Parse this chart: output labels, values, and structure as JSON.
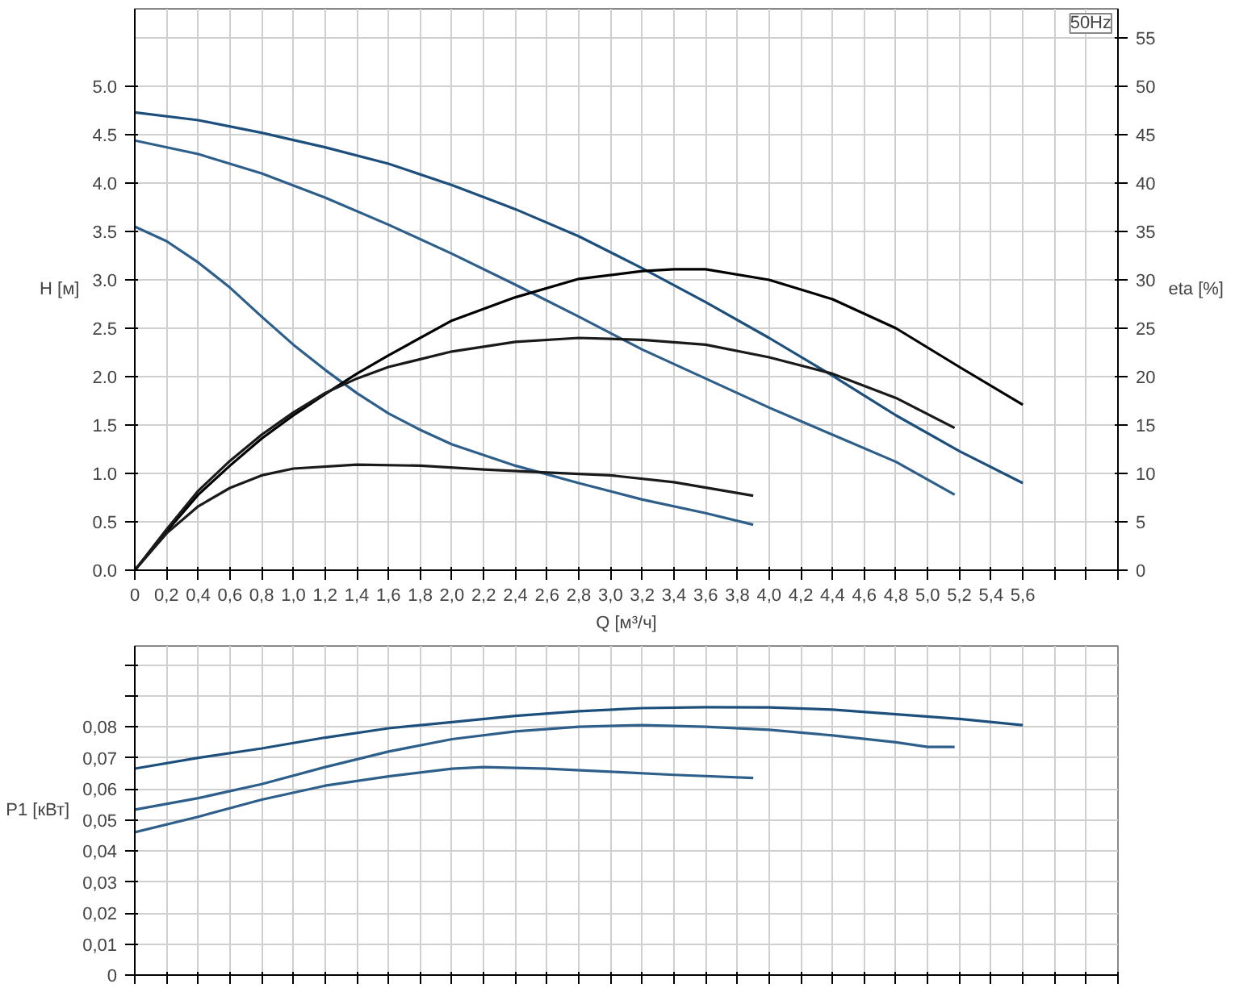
{
  "chart_data": [
    {
      "type": "line",
      "xlabel": "Q [м³/ч]",
      "ylabel": "H [м]",
      "y2label": "eta [%]",
      "annotations": [
        "50Hz"
      ],
      "xlim": [
        0,
        6.2
      ],
      "ylim": [
        0,
        5.8
      ],
      "y2lim": [
        0,
        58
      ],
      "xticks": [
        0,
        {
          "value": 0.2,
          "label": "0,2"
        },
        {
          "value": 0.4,
          "label": "0,4"
        },
        {
          "value": 0.6,
          "label": "0,6"
        },
        {
          "value": 0.8,
          "label": "0,8"
        },
        {
          "value": 1.0,
          "label": "1,0"
        },
        {
          "value": 1.2,
          "label": "1,2"
        },
        {
          "value": 1.4,
          "label": "1,4"
        },
        {
          "value": 1.6,
          "label": "1,6"
        },
        {
          "value": 1.8,
          "label": "1,8"
        },
        {
          "value": 2.0,
          "label": "2,0"
        },
        {
          "value": 2.2,
          "label": "2,2"
        },
        {
          "value": 2.4,
          "label": "2,4"
        },
        {
          "value": 2.6,
          "label": "2,6"
        },
        {
          "value": 2.8,
          "label": "2,8"
        },
        {
          "value": 3.0,
          "label": "3,0"
        },
        {
          "value": 3.2,
          "label": "3,2"
        },
        {
          "value": 3.4,
          "label": "3,4"
        },
        {
          "value": 3.6,
          "label": "3,6"
        },
        {
          "value": 3.8,
          "label": "3,8"
        },
        {
          "value": 4.0,
          "label": "4,0"
        },
        {
          "value": 4.2,
          "label": "4,2"
        },
        {
          "value": 4.4,
          "label": "4,4"
        },
        {
          "value": 4.6,
          "label": "4,6"
        },
        {
          "value": 4.8,
          "label": "4,8"
        },
        {
          "value": 5.0,
          "label": "5,0"
        },
        {
          "value": 5.2,
          "label": "5,2"
        },
        {
          "value": 5.4,
          "label": "5,4"
        },
        {
          "value": 5.6,
          "label": "5,6"
        },
        {
          "value": 5.8,
          "label": null
        },
        {
          "value": 6.0,
          "label": null
        },
        {
          "value": 6.2,
          "label": null
        }
      ],
      "yticks": [
        {
          "value": 0,
          "label": "0.0"
        },
        {
          "value": 0.5,
          "label": "0.5"
        },
        {
          "value": 1,
          "label": "1.0"
        },
        {
          "value": 1.5,
          "label": "1.5"
        },
        {
          "value": 2,
          "label": "2.0"
        },
        {
          "value": 2.5,
          "label": "2.5"
        },
        {
          "value": 3,
          "label": "3.0"
        },
        {
          "value": 3.5,
          "label": "3.5"
        },
        {
          "value": 4,
          "label": "4.0"
        },
        {
          "value": 4.5,
          "label": "4.5"
        },
        {
          "value": 5,
          "label": "5.0"
        }
      ],
      "y2ticks": [
        0,
        5,
        10,
        15,
        20,
        25,
        30,
        35,
        40,
        45,
        50,
        55
      ],
      "grid": true,
      "series": [
        {
          "color": "#1c4f7c",
          "x": [
            0,
            0.4,
            0.8,
            1.2,
            1.6,
            2.0,
            2.4,
            2.8,
            3.2,
            3.6,
            4.0,
            4.4,
            4.8,
            5.2,
            5.6
          ],
          "values": [
            4.73,
            4.65,
            4.52,
            4.37,
            4.2,
            3.98,
            3.73,
            3.45,
            3.12,
            2.77,
            2.4,
            2.01,
            1.6,
            1.23,
            0.9
          ]
        },
        {
          "color": "#2e5f8a",
          "x": [
            0,
            0.4,
            0.8,
            1.2,
            1.6,
            2.0,
            2.4,
            2.8,
            3.2,
            3.6,
            4.0,
            4.4,
            4.8,
            5.17
          ],
          "values": [
            4.44,
            4.3,
            4.1,
            3.85,
            3.57,
            3.27,
            2.95,
            2.62,
            2.28,
            1.98,
            1.68,
            1.4,
            1.12,
            0.78
          ]
        },
        {
          "color": "#2e5f8a",
          "x": [
            0,
            0.2,
            0.4,
            0.6,
            0.8,
            1.0,
            1.2,
            1.4,
            1.6,
            1.8,
            2.0,
            2.4,
            2.8,
            3.2,
            3.6,
            3.9
          ],
          "values": [
            3.55,
            3.4,
            3.18,
            2.92,
            2.62,
            2.33,
            2.07,
            1.83,
            1.62,
            1.45,
            1.3,
            1.08,
            0.9,
            0.73,
            0.59,
            0.47
          ]
        },
        {
          "color": "#000000",
          "axis": "y2",
          "x": [
            0,
            0.2,
            0.4,
            0.6,
            0.8,
            1.0,
            1.2,
            1.4,
            1.6,
            2.0,
            2.4,
            2.8,
            3.2,
            3.4,
            3.6,
            4.0,
            4.4,
            4.8,
            5.2,
            5.6
          ],
          "values": [
            0,
            4,
            7.8,
            10.8,
            13.6,
            16,
            18.2,
            20.3,
            22.2,
            25.8,
            28.2,
            30.1,
            30.9,
            31.1,
            31.1,
            30,
            28,
            25,
            21,
            17.1
          ]
        },
        {
          "color": "#1a1a1a",
          "axis": "y2",
          "x": [
            0,
            0.2,
            0.4,
            0.6,
            0.8,
            1.0,
            1.2,
            1.4,
            1.6,
            2.0,
            2.4,
            2.8,
            3.2,
            3.6,
            4.0,
            4.4,
            4.8,
            5.17
          ],
          "values": [
            0,
            4.2,
            8.2,
            11.3,
            14,
            16.3,
            18.3,
            19.8,
            21,
            22.6,
            23.6,
            24,
            23.8,
            23.3,
            22,
            20.3,
            17.8,
            14.7
          ]
        },
        {
          "color": "#1a1a1a",
          "axis": "y2",
          "x": [
            0,
            0.2,
            0.4,
            0.6,
            0.8,
            1.0,
            1.4,
            1.8,
            2.2,
            2.6,
            3.0,
            3.4,
            3.9
          ],
          "values": [
            0,
            3.8,
            6.6,
            8.5,
            9.8,
            10.5,
            10.9,
            10.8,
            10.4,
            10.1,
            9.8,
            9.1,
            7.7
          ]
        }
      ]
    },
    {
      "type": "line",
      "ylabel": "P1 [кВт]",
      "xlim": [
        0,
        6.2
      ],
      "ylim": [
        0,
        0.106
      ],
      "tick_labels": "y",
      "grid": true,
      "xticks": [
        0,
        0.2,
        0.4,
        0.6,
        0.8,
        1.0,
        1.2,
        1.4,
        1.6,
        1.8,
        2.0,
        2.2,
        2.4,
        2.6,
        2.8,
        3.0,
        3.2,
        3.4,
        3.6,
        3.8,
        4.0,
        4.2,
        4.4,
        4.6,
        4.8,
        5.0,
        5.2,
        5.4,
        5.6,
        5.8,
        6.0,
        6.2
      ],
      "yticks": [
        0,
        {
          "value": 0.01,
          "label": "0,01"
        },
        {
          "value": 0.02,
          "label": "0,02"
        },
        {
          "value": 0.03,
          "label": "0,03"
        },
        {
          "value": 0.04,
          "label": "0,04"
        },
        {
          "value": 0.05,
          "label": "0,05"
        },
        {
          "value": 0.06,
          "label": "0,06"
        },
        {
          "value": 0.07,
          "label": "0,07"
        },
        {
          "value": 0.08,
          "label": "0,08"
        },
        {
          "value": 0.09,
          "label": null
        },
        {
          "value": 0.1,
          "label": null
        }
      ],
      "series": [
        {
          "color": "#1c4f7c",
          "x": [
            0,
            0.4,
            0.8,
            1.2,
            1.6,
            2.0,
            2.4,
            2.8,
            3.2,
            3.6,
            4.0,
            4.4,
            4.8,
            5.2,
            5.6
          ],
          "values": [
            0.0665,
            0.07,
            0.073,
            0.0765,
            0.0795,
            0.0815,
            0.0835,
            0.085,
            0.086,
            0.0863,
            0.0862,
            0.0855,
            0.084,
            0.0825,
            0.0805
          ]
        },
        {
          "color": "#2e5f8a",
          "x": [
            0,
            0.4,
            0.8,
            1.2,
            1.6,
            2.0,
            2.4,
            2.8,
            3.2,
            3.6,
            4.0,
            4.4,
            4.8,
            5.0,
            5.17
          ],
          "values": [
            0.0533,
            0.057,
            0.0615,
            0.067,
            0.072,
            0.076,
            0.0785,
            0.08,
            0.0805,
            0.08,
            0.079,
            0.0772,
            0.075,
            0.0735,
            0.0735
          ]
        },
        {
          "color": "#2e5f8a",
          "x": [
            0,
            0.4,
            0.8,
            1.2,
            1.6,
            2.0,
            2.2,
            2.6,
            3.0,
            3.4,
            3.9
          ],
          "values": [
            0.046,
            0.051,
            0.0565,
            0.061,
            0.064,
            0.0665,
            0.067,
            0.0665,
            0.0655,
            0.0645,
            0.0635
          ]
        }
      ]
    }
  ]
}
